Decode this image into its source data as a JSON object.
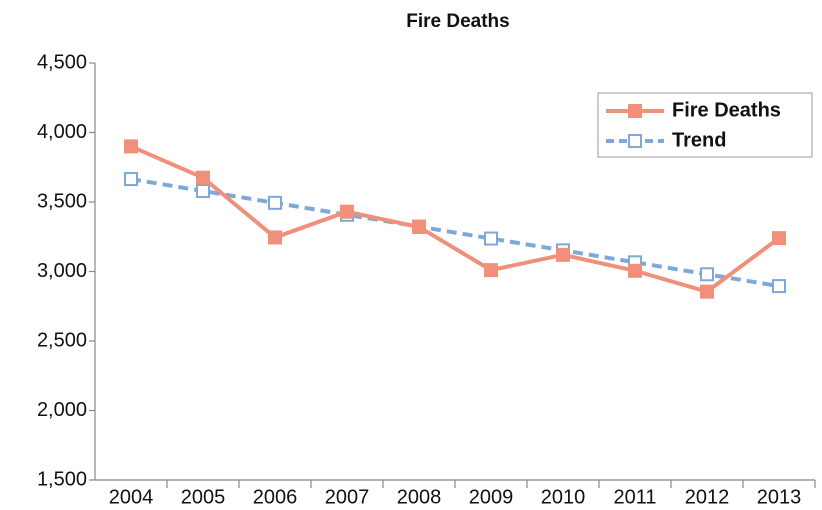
{
  "chart_data": {
    "type": "line",
    "title": "Fire Deaths",
    "categories": [
      "2004",
      "2005",
      "2006",
      "2007",
      "2008",
      "2009",
      "2010",
      "2011",
      "2012",
      "2013"
    ],
    "series": [
      {
        "name": "Fire Deaths",
        "color": "#f0907a",
        "values": [
          3900,
          3675,
          3245,
          3430,
          3320,
          3010,
          3120,
          3005,
          2855,
          3240
        ]
      },
      {
        "name": "Trend",
        "color": "#7fa7d9",
        "values": [
          3665,
          3579,
          3494,
          3408,
          3323,
          3237,
          3152,
          3066,
          2980,
          2895
        ]
      }
    ],
    "ylim": [
      1500,
      4500
    ],
    "yticks": [
      {
        "value": 1500,
        "label": "1,500"
      },
      {
        "value": 2000,
        "label": "2,000"
      },
      {
        "value": 2500,
        "label": "2,500"
      },
      {
        "value": 3000,
        "label": "3,000"
      },
      {
        "value": 3500,
        "label": "3,500"
      },
      {
        "value": 4000,
        "label": "4,000"
      },
      {
        "value": 4500,
        "label": "4,500"
      }
    ],
    "grid": false,
    "legend": "upper right"
  }
}
